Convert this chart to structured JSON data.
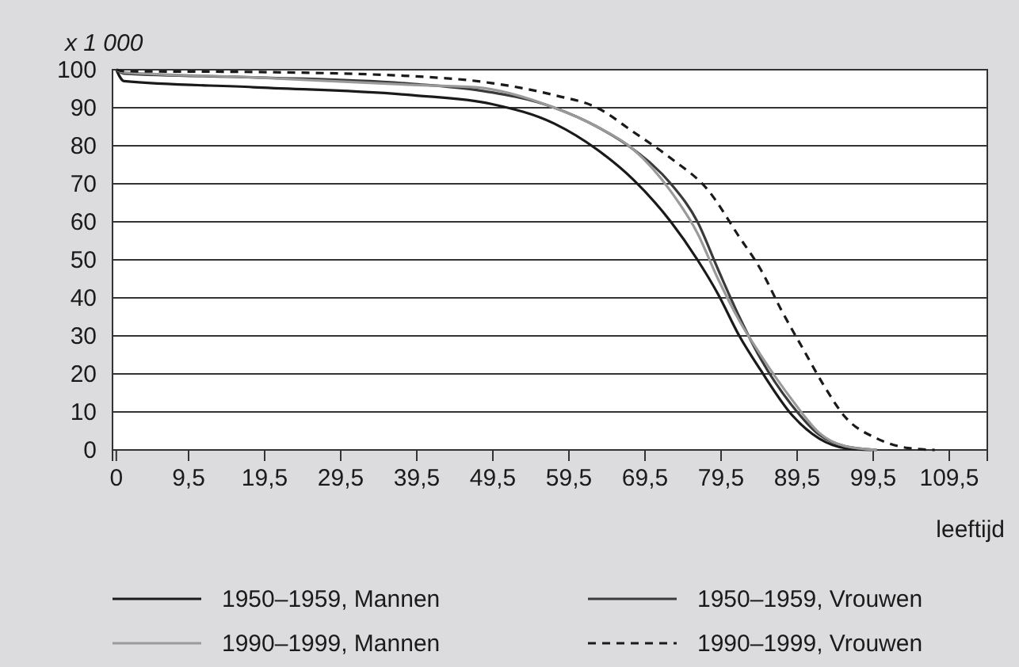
{
  "chart_data": {
    "type": "line",
    "ylabel": "x 1 000",
    "xlabel": "leeftijd",
    "xlim": [
      -0.5,
      114.5
    ],
    "xticks": [
      0,
      {
        "value": 9.5,
        "label": "9,5"
      },
      {
        "value": 19.5,
        "label": "19,5"
      },
      {
        "value": 29.5,
        "label": "29,5"
      },
      {
        "value": 39.5,
        "label": "39,5"
      },
      {
        "value": 49.5,
        "label": "49,5"
      },
      {
        "value": 59.5,
        "label": "59,5"
      },
      {
        "value": 69.5,
        "label": "69,5"
      },
      {
        "value": 79.5,
        "label": "79,5"
      },
      {
        "value": 89.5,
        "label": "89,5"
      },
      {
        "value": 99.5,
        "label": "99,5"
      },
      {
        "value": 109.5,
        "label": "109,5"
      }
    ],
    "ylim": [
      0,
      100
    ],
    "yticks": [
      0,
      10,
      20,
      30,
      40,
      50,
      60,
      70,
      80,
      90,
      100
    ],
    "grid": "y",
    "legend": "bottom",
    "marker": "none",
    "series": [
      {
        "name": "1950–1959, Mannen",
        "color": "#1a1a1a",
        "line_style": "solid",
        "x": [
          0,
          1,
          18,
          38.9,
          49.3,
          57.6,
          63.2,
          68,
          72.9,
          76.4,
          79.1,
          81.9,
          84.7,
          88.9,
          92.4,
          95.8,
          99.3
        ],
        "values": [
          100,
          97,
          95.4,
          93.3,
          91,
          85.8,
          79,
          71,
          60,
          50,
          41,
          30,
          21,
          9,
          3,
          0.5,
          0
        ]
      },
      {
        "name": "1950–1959, Vrouwen",
        "color": "#3a3a3a",
        "line_style": "solid",
        "x": [
          0,
          1,
          18,
          38.9,
          47.2,
          57.6,
          63.2,
          68,
          72.9,
          76.4,
          79.1,
          81.9,
          84.7,
          88.9,
          92.4,
          95.8,
          100
        ],
        "values": [
          100,
          99,
          98,
          96.3,
          94.7,
          90,
          85,
          79,
          70,
          60,
          47.5,
          35,
          24,
          11.5,
          4,
          1,
          0
        ]
      },
      {
        "name": "1990–1999, Mannen",
        "color": "#9a9a9a",
        "line_style": "solid",
        "x": [
          0,
          1,
          18,
          38.9,
          47.2,
          57.6,
          63.2,
          68,
          72.9,
          76.4,
          79.1,
          81.9,
          84.7,
          88.9,
          92.4,
          95.8,
          100
        ],
        "values": [
          100,
          99.3,
          98,
          96,
          95.4,
          90,
          85,
          79,
          68,
          57,
          45,
          34,
          25,
          13,
          4.5,
          1,
          0
        ]
      },
      {
        "name": "1990–1999, Vrouwen",
        "color": "#1a1a1a",
        "line_style": "dashed",
        "x": [
          0,
          1,
          18,
          38.9,
          49.3,
          57.6,
          63.2,
          68,
          72.9,
          77.8,
          81.9,
          84.7,
          87.5,
          90.3,
          93,
          95.8,
          100,
          104.1,
          107.6
        ],
        "values": [
          100,
          99.6,
          99.4,
          98.3,
          96.5,
          93.3,
          90,
          83.6,
          76.7,
          68.3,
          56,
          47.5,
          36.5,
          26.5,
          17,
          8.7,
          3,
          0.5,
          0
        ]
      }
    ]
  }
}
